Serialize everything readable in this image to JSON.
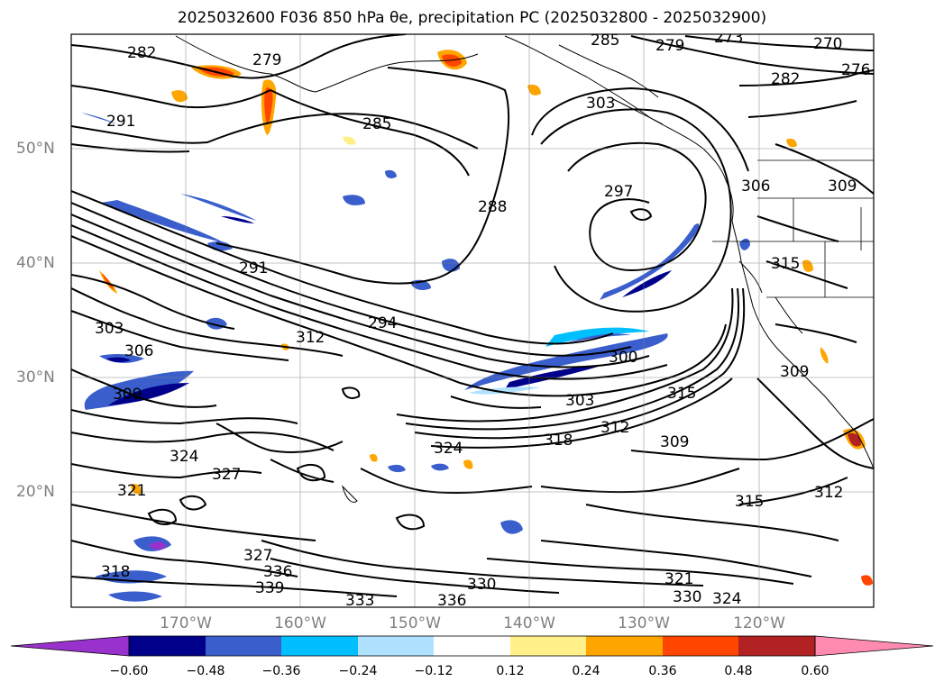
{
  "title": "2025032600 F036 850 hPa θe, precipitation PC (2025032800 - 2025032900)",
  "map": {
    "lon_labels": [
      "170°W",
      "160°W",
      "150°W",
      "140°W",
      "130°W",
      "120°W"
    ],
    "lat_labels": [
      "50°N",
      "40°N",
      "30°N",
      "20°N"
    ],
    "extent": {
      "lon_min": -180,
      "lon_max": -110,
      "lat_min": 10,
      "lat_max": 60
    },
    "grid_lons": [
      -170,
      -160,
      -150,
      -140,
      -130,
      -120
    ],
    "grid_lats": [
      20,
      30,
      40,
      50
    ],
    "theta_e_contour_labels": [
      "282",
      "279",
      "285",
      "279",
      "273",
      "270",
      "276",
      "282",
      "291",
      "285",
      "288",
      "297",
      "303",
      "306",
      "309",
      "315",
      "291",
      "294",
      "312",
      "303",
      "306",
      "309",
      "300",
      "303",
      "315",
      "318",
      "312",
      "309",
      "324",
      "309",
      "327",
      "321",
      "324",
      "315",
      "312",
      "318",
      "327",
      "336",
      "339",
      "333",
      "330",
      "336",
      "321",
      "330",
      "324"
    ]
  },
  "colorbar": {
    "ticks": [
      "−0.60",
      "−0.48",
      "−0.36",
      "−0.24",
      "−0.12",
      "0.12",
      "0.24",
      "0.36",
      "0.48",
      "0.60"
    ],
    "colors": [
      "#9932cc",
      "#00008b",
      "#3a5fcd",
      "#00bfff",
      "#b0e2ff",
      "#ffffff",
      "#fff08a",
      "#ffa500",
      "#ff4500",
      "#b22222",
      "#ff8cb0"
    ]
  }
}
